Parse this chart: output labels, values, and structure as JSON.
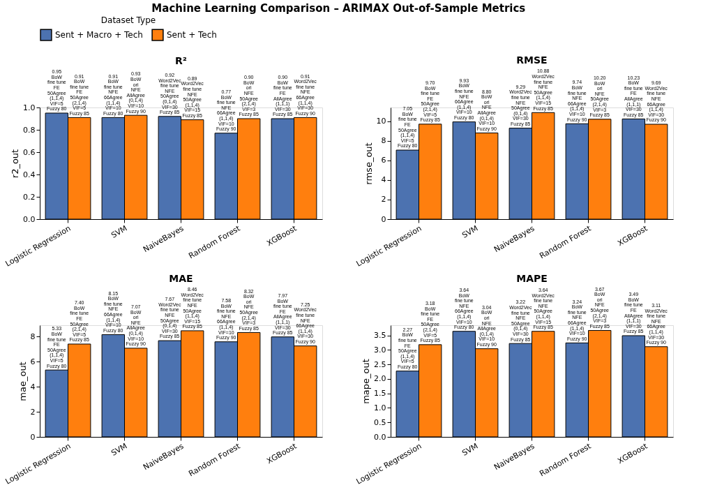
{
  "chart_data": [
    {
      "type": "bar",
      "title": "R²",
      "ylabel": "r2_out",
      "categories": [
        "Logistic Regression",
        "SVM",
        "NaiveBayes",
        "Random Forest",
        "XGBoost"
      ],
      "legend": "top",
      "legend_title": "Dataset Type",
      "grid": false,
      "ylim": [
        0,
        1.0
      ],
      "yticks": [
        {
          "value": 0,
          "label": "0.0"
        },
        0.2,
        0.4,
        0.6,
        0.8,
        {
          "value": 1,
          "label": "1.0"
        }
      ],
      "series": [
        {
          "name": "Sent + Macro + Tech",
          "color": "#4c72b0",
          "values": [
            0.95,
            0.91,
            0.92,
            0.77,
            0.9
          ],
          "value_labels": [
            "0.95\nBoW\nfine tune\nFE\n50Agree\n(1,1,4)\nVIF=5\nFuzzy 80",
            "0.91\nBoW\nfine tune\nNFE\n66Agree\n(1,1,4)\nVIF=10\nFuzzy 80",
            "0.92\nWord2Vec\nfine tune\nNFE\n50Agree\n(0,1,4)\nVIF=30\nFuzzy 85",
            "0.77\nBoW\nfine tune\nNFE\n66Agree\n(1,1,4)\nVIF=10\nFuzzy 90",
            "0.90\nBoW\nfine tune\nFE\nAllAgree\n(1,1,1)\nVIF=30\nFuzzy 85"
          ]
        },
        {
          "name": "Sent + Tech",
          "color": "#ff7f0e",
          "values": [
            0.91,
            0.93,
            0.89,
            0.9,
            0.91
          ],
          "value_labels": [
            "0.91\nBoW\nfine tune\nFE\n50Agree\n(2,1,4)\nVIF=5\nFuzzy 85",
            "0.93\nBoW\nori\nNFE\nAllAgree\n(0,1,4)\nVIF=10\nFuzzy 90",
            "0.89\nWord2Vec\nfine tune\nNFE\n50Agree\n(1,1,4)\nVIF=15\nFuzzy 85",
            "0.90\nBoW\nori\nNFE\n50Agree\n(2,1,4)\nVIF=3\nFuzzy 85",
            "0.91\nWord2Vec\nfine tune\nNFE\n66Agree\n(1,1,4)\nVIF=30\nFuzzy 90"
          ]
        }
      ],
      "annotations": [
        "Machine Learning Comparison – ARIMAX Out-of-Sample Metrics"
      ]
    },
    {
      "type": "bar",
      "title": "RMSE",
      "ylabel": "rmse_out",
      "categories": [
        "Logistic Regression",
        "SVM",
        "NaiveBayes",
        "Random Forest",
        "XGBoost"
      ],
      "legend": "top",
      "grid": false,
      "ylim": [
        0,
        11.4
      ],
      "yticks": [
        0,
        2,
        4,
        6,
        8,
        10
      ],
      "series": [
        {
          "name": "Sent + Macro + Tech",
          "color": "#4c72b0",
          "values": [
            7.05,
            9.93,
            9.29,
            9.74,
            10.23
          ],
          "value_labels": [
            "7.05\nBoW\nfine tune\nFE\n50Agree\n(1,1,4)\nVIF=5\nFuzzy 80",
            "9.93\nBoW\nfine tune\nNFE\n66Agree\n(1,1,4)\nVIF=10\nFuzzy 80",
            "9.29\nWord2Vec\nfine tune\nNFE\n50Agree\n(0,1,4)\nVIF=30\nFuzzy 85",
            "9.74\nBoW\nfine tune\nNFE\n66Agree\n(1,1,4)\nVIF=10\nFuzzy 90",
            "10.23\nBoW\nfine tune\nFE\nAllAgree\n(1,1,1)\nVIF=30\nFuzzy 85"
          ]
        },
        {
          "name": "Sent + Tech",
          "color": "#ff7f0e",
          "values": [
            9.7,
            8.8,
            10.88,
            10.2,
            9.69
          ],
          "value_labels": [
            "9.70\nBoW\nfine tune\nFE\n50Agree\n(2,1,4)\nVIF=5\nFuzzy 85",
            "8.80\nBoW\nori\nNFE\nAllAgree\n(0,1,4)\nVIF=10\nFuzzy 90",
            "10.88\nWord2Vec\nfine tune\nNFE\n50Agree\n(1,1,4)\nVIF=15\nFuzzy 85",
            "10.20\nBoW\nori\nNFE\n50Agree\n(2,1,4)\nVIF=3\nFuzzy 85",
            "9.69\nWord2Vec\nfine tune\nNFE\n66Agree\n(1,1,4)\nVIF=30\nFuzzy 90"
          ]
        }
      ]
    },
    {
      "type": "bar",
      "title": "MAE",
      "ylabel": "mae_out",
      "categories": [
        "Logistic Regression",
        "SVM",
        "NaiveBayes",
        "Random Forest",
        "XGBoost"
      ],
      "legend": "top",
      "grid": false,
      "ylim": [
        0,
        8.9
      ],
      "yticks": [
        0,
        2,
        4,
        6,
        8
      ],
      "series": [
        {
          "name": "Sent + Macro + Tech",
          "color": "#4c72b0",
          "values": [
            5.33,
            8.15,
            7.67,
            7.58,
            7.97
          ],
          "value_labels": [
            "5.33\nBoW\nfine tune\nFE\n50Agree\n(1,1,4)\nVIF=5\nFuzzy 80",
            "8.15\nBoW\nfine tune\nNFE\n66Agree\n(1,1,4)\nVIF=10\nFuzzy 80",
            "7.67\nWord2Vec\nfine tune\nNFE\n50Agree\n(0,1,4)\nVIF=30\nFuzzy 85",
            "7.58\nBoW\nfine tune\nNFE\n66Agree\n(1,1,4)\nVIF=10\nFuzzy 90",
            "7.97\nBoW\nfine tune\nFE\nAllAgree\n(1,1,1)\nVIF=30\nFuzzy 85"
          ]
        },
        {
          "name": "Sent + Tech",
          "color": "#ff7f0e",
          "values": [
            7.4,
            7.07,
            8.46,
            8.32,
            7.25
          ],
          "value_labels": [
            "7.40\nBoW\nfine tune\nFE\n50Agree\n(2,1,4)\nVIF=5\nFuzzy 85",
            "7.07\nBoW\nori\nNFE\nAllAgree\n(0,1,4)\nVIF=10\nFuzzy 90",
            "8.46\nWord2Vec\nfine tune\nNFE\n50Agree\n(1,1,4)\nVIF=15\nFuzzy 85",
            "8.32\nBoW\nori\nNFE\n50Agree\n(2,1,4)\nVIF=3\nFuzzy 85",
            "7.25\nWord2Vec\nfine tune\nNFE\n66Agree\n(1,1,4)\nVIF=30\nFuzzy 90"
          ]
        }
      ]
    },
    {
      "type": "bar",
      "title": "MAPE",
      "ylabel": "mape_out",
      "categories": [
        "Logistic Regression",
        "SVM",
        "NaiveBayes",
        "Random Forest",
        "XGBoost"
      ],
      "legend": "top",
      "grid": false,
      "ylim": [
        0,
        3.85
      ],
      "yticks": [
        {
          "value": 0,
          "label": "0.0"
        },
        0.5,
        {
          "value": 1,
          "label": "1.0"
        },
        1.5,
        {
          "value": 2,
          "label": "2.0"
        },
        2.5,
        {
          "value": 3,
          "label": "3.0"
        },
        3.5
      ],
      "series": [
        {
          "name": "Sent + Macro + Tech",
          "color": "#4c72b0",
          "values": [
            2.27,
            3.64,
            3.22,
            3.24,
            3.49
          ],
          "value_labels": [
            "2.27\nBoW\nfine tune\nFE\n50Agree\n(1,1,4)\nVIF=5\nFuzzy 80",
            "3.64\nBoW\nfine tune\nNFE\n66Agree\n(1,1,4)\nVIF=10\nFuzzy 80",
            "3.22\nWord2Vec\nfine tune\nNFE\n50Agree\n(0,1,4)\nVIF=30\nFuzzy 85",
            "3.24\nBoW\nfine tune\nNFE\n66Agree\n(1,1,4)\nVIF=10\nFuzzy 90",
            "3.49\nBoW\nfine tune\nFE\nAllAgree\n(1,1,1)\nVIF=30\nFuzzy 85"
          ]
        },
        {
          "name": "Sent + Tech",
          "color": "#ff7f0e",
          "values": [
            3.18,
            3.04,
            3.64,
            3.67,
            3.11
          ],
          "value_labels": [
            "3.18\nBoW\nfine tune\nFE\n50Agree\n(2,1,4)\nVIF=5\nFuzzy 85",
            "3.04\nBoW\nori\nNFE\nAllAgree\n(0,1,4)\nVIF=10\nFuzzy 90",
            "3.64\nWord2Vec\nfine tune\nNFE\n50Agree\n(1,1,4)\nVIF=15\nFuzzy 85",
            "3.67\nBoW\nori\nNFE\n50Agree\n(2,1,4)\nVIF=3\nFuzzy 85",
            "3.11\nWord2Vec\nfine tune\nNFE\n66Agree\n(1,1,4)\nVIF=30\nFuzzy 90"
          ]
        }
      ]
    }
  ]
}
